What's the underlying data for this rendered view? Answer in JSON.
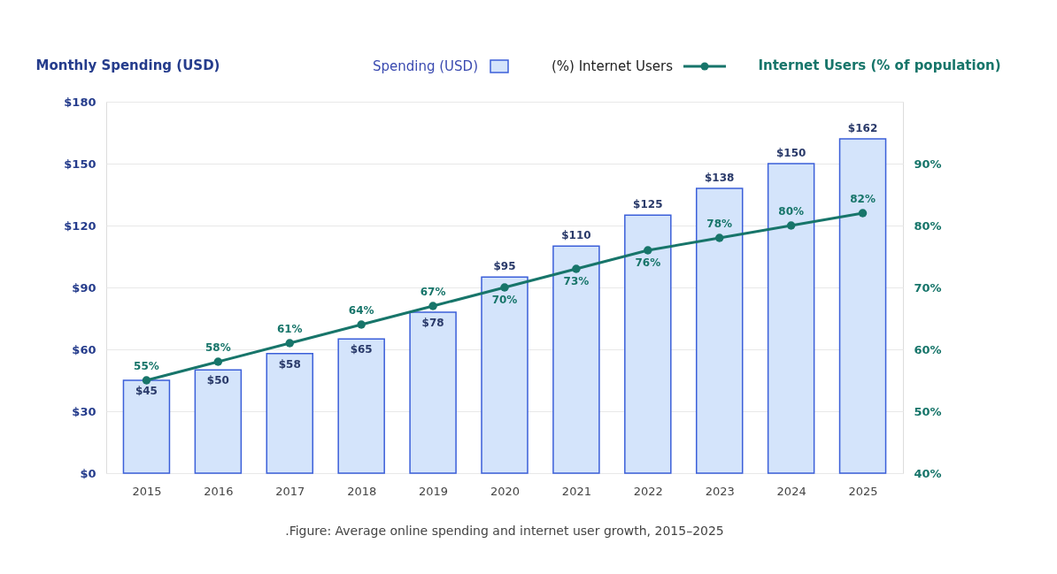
{
  "chart_data": {
    "type": "bar",
    "categories": [
      "2015",
      "2016",
      "2017",
      "2018",
      "2019",
      "2020",
      "2021",
      "2022",
      "2023",
      "2024",
      "2025"
    ],
    "ylabel": "Monthly Spending (USD)",
    "y2label": "Internet Users (% of population)",
    "ylim": [
      0,
      180
    ],
    "yticks": [
      {
        "value": 0,
        "label": "$0"
      },
      {
        "value": 30,
        "label": "$30"
      },
      {
        "value": 60,
        "label": "$60"
      },
      {
        "value": 90,
        "label": "$90"
      },
      {
        "value": 120,
        "label": "$120"
      },
      {
        "value": 150,
        "label": "$150"
      },
      {
        "value": 180,
        "label": "$180"
      }
    ],
    "y2lim": [
      40,
      100
    ],
    "y2ticks": [
      {
        "value": 40,
        "label": "40%"
      },
      {
        "value": 50,
        "label": "50%"
      },
      {
        "value": 60,
        "label": "60%"
      },
      {
        "value": 70,
        "label": "70%"
      },
      {
        "value": 80,
        "label": "80%"
      },
      {
        "value": 90,
        "label": "90%"
      }
    ],
    "series": [
      {
        "name": "Spending (USD)",
        "color": "#3b5fd9",
        "values": [
          45,
          50,
          58,
          65,
          78,
          95,
          110,
          125,
          138,
          150,
          162
        ],
        "value_labels": [
          "$45",
          "$50",
          "$58",
          "$65",
          "$78",
          "$95",
          "$110",
          "$125",
          "$138",
          "$150",
          "$162"
        ]
      },
      {
        "name": "(%) Internet Users",
        "type": "line",
        "axis": "y2",
        "color": "#17756a",
        "marker": "circle",
        "values": [
          55,
          58,
          61,
          64,
          67,
          70,
          73,
          76,
          78,
          80,
          82
        ],
        "value_labels": [
          "55%",
          "58%",
          "61%",
          "64%",
          "67%",
          "70%",
          "73%",
          "76%",
          "78%",
          "80%",
          "82%"
        ]
      }
    ],
    "grid": "y",
    "legend": "top",
    "annotations": [
      ".Figure: Average online spending and internet user growth, 2015–2025"
    ]
  }
}
